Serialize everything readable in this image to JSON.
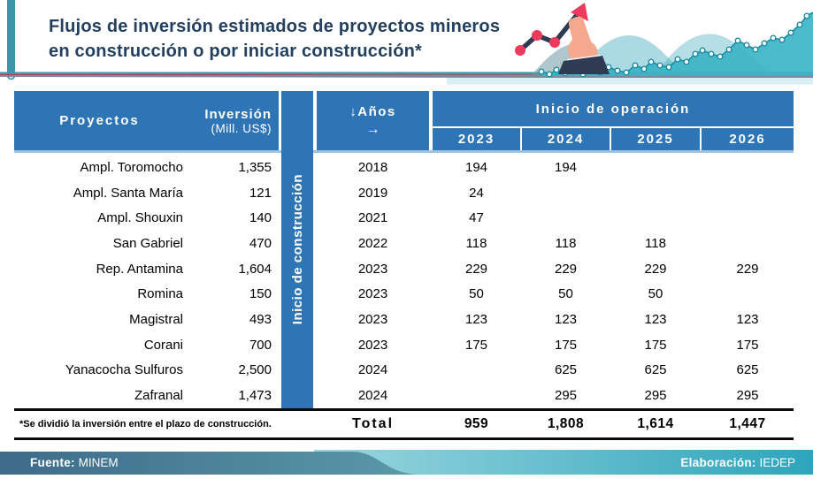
{
  "title": {
    "line1": "Flujos de inversión estimados de proyectos mineros",
    "line2": "en construcción o por iniciar construcción*"
  },
  "table": {
    "header": {
      "proyectos": "Proyectos",
      "inversion": "Inversión",
      "inversion_unit": "(Mill. US$)",
      "band": "Inicio de construcción",
      "anios": "↓Años",
      "anios_arrow": "→",
      "inicio_operacion": "Inicio de operación",
      "years": [
        "2023",
        "2024",
        "2025",
        "2026"
      ]
    },
    "rows": [
      {
        "name": "Ampl. Toromocho",
        "inv": "1,355",
        "inicio": "2018",
        "v2023": "194",
        "v2024": "194",
        "v2025": "",
        "v2026": ""
      },
      {
        "name": "Ampl. Santa María",
        "inv": "121",
        "inicio": "2019",
        "v2023": "24",
        "v2024": "",
        "v2025": "",
        "v2026": ""
      },
      {
        "name": "Ampl. Shouxin",
        "inv": "140",
        "inicio": "2021",
        "v2023": "47",
        "v2024": "",
        "v2025": "",
        "v2026": ""
      },
      {
        "name": "San Gabriel",
        "inv": "470",
        "inicio": "2022",
        "v2023": "118",
        "v2024": "118",
        "v2025": "118",
        "v2026": ""
      },
      {
        "name": "Rep. Antamina",
        "inv": "1,604",
        "inicio": "2023",
        "v2023": "229",
        "v2024": "229",
        "v2025": "229",
        "v2026": "229"
      },
      {
        "name": "Romina",
        "inv": "150",
        "inicio": "2023",
        "v2023": "50",
        "v2024": "50",
        "v2025": "50",
        "v2026": ""
      },
      {
        "name": "Magistral",
        "inv": "493",
        "inicio": "2023",
        "v2023": "123",
        "v2024": "123",
        "v2025": "123",
        "v2026": "123"
      },
      {
        "name": "Corani",
        "inv": "700",
        "inicio": "2023",
        "v2023": "175",
        "v2024": "175",
        "v2025": "175",
        "v2026": "175"
      },
      {
        "name": "Yanacocha Sulfuros",
        "inv": "2,500",
        "inicio": "2024",
        "v2023": "",
        "v2024": "625",
        "v2025": "625",
        "v2026": "625"
      },
      {
        "name": "Zafranal",
        "inv": "1,473",
        "inicio": "2024",
        "v2023": "",
        "v2024": "295",
        "v2025": "295",
        "v2026": "295"
      }
    ],
    "total": {
      "label": "Total",
      "values": [
        "959",
        "1,808",
        "1,614",
        "1,447"
      ]
    },
    "footnote": "*Se dividió la inversión entre el plazo de construcción."
  },
  "footer": {
    "fuente_label": "Fuente:",
    "fuente_value": "MINEM",
    "elaboracion_label": "Elaboración:",
    "elaboracion_value": "IEDEP"
  },
  "colors": {
    "header_blue": "#2E75B6",
    "header_underline": "#9DC3E6",
    "title_navy": "#24405F",
    "accent_teal": "#3E95AB",
    "chart_teal": "#3CB4C6",
    "dot_red": "#EE3B5D",
    "line_navy": "#2E3B52",
    "footer_dark": "#3D6B8A",
    "footer_teal": "#2EA5BB"
  }
}
